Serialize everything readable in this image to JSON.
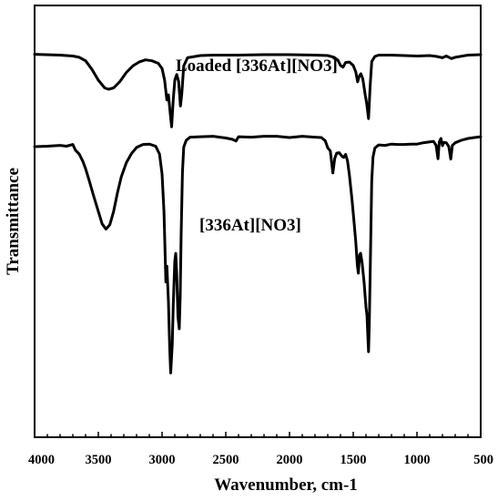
{
  "chart_data": {
    "type": "line",
    "title": "",
    "xlabel": "Wavenumber, cm-1",
    "ylabel": "Transmittance",
    "xlim": [
      4000,
      500
    ],
    "x_reversed": true,
    "x_ticks": [
      4000,
      3500,
      3000,
      2500,
      2000,
      1500,
      1000,
      500
    ],
    "y_tick_labels": false,
    "grid": false,
    "legend": "none",
    "colors": {
      "line": "#000000",
      "frame": "#000000"
    },
    "annotations": [
      {
        "id": "loaded",
        "text": "Loaded [336At][NO3]"
      },
      {
        "id": "neat",
        "text": "[336At][NO3]"
      }
    ],
    "series": [
      {
        "annotation": "Loaded [336At][NO3]",
        "points": [
          [
            4000,
            88.7
          ],
          [
            3800,
            88.5
          ],
          [
            3700,
            88.3
          ],
          [
            3650,
            88.0
          ],
          [
            3600,
            87.2
          ],
          [
            3550,
            85.2
          ],
          [
            3500,
            82.7
          ],
          [
            3450,
            80.9
          ],
          [
            3420,
            80.6
          ],
          [
            3380,
            80.9
          ],
          [
            3330,
            82.4
          ],
          [
            3280,
            84.5
          ],
          [
            3230,
            86.0
          ],
          [
            3180,
            86.9
          ],
          [
            3130,
            87.4
          ],
          [
            3080,
            87.2
          ],
          [
            3030,
            86.6
          ],
          [
            3000,
            85.4
          ],
          [
            2980,
            82.7
          ],
          [
            2962,
            78.1
          ],
          [
            2950,
            79.3
          ],
          [
            2935,
            74.8
          ],
          [
            2925,
            71.9
          ],
          [
            2912,
            78.2
          ],
          [
            2900,
            82.7
          ],
          [
            2885,
            84.0
          ],
          [
            2870,
            82.4
          ],
          [
            2856,
            76.7
          ],
          [
            2845,
            79.6
          ],
          [
            2830,
            86.0
          ],
          [
            2800,
            87.9
          ],
          [
            2700,
            88.4
          ],
          [
            2600,
            88.5
          ],
          [
            2400,
            88.5
          ],
          [
            2200,
            88.6
          ],
          [
            2000,
            88.6
          ],
          [
            1800,
            88.5
          ],
          [
            1700,
            88.4
          ],
          [
            1650,
            88.0
          ],
          [
            1620,
            87.3
          ],
          [
            1600,
            86.1
          ],
          [
            1580,
            85.7
          ],
          [
            1560,
            86.8
          ],
          [
            1530,
            86.9
          ],
          [
            1500,
            86.1
          ],
          [
            1480,
            84.6
          ],
          [
            1466,
            82.3
          ],
          [
            1455,
            83.5
          ],
          [
            1440,
            84.2
          ],
          [
            1425,
            83.0
          ],
          [
            1405,
            79.1
          ],
          [
            1395,
            77.4
          ],
          [
            1380,
            73.8
          ],
          [
            1368,
            81.1
          ],
          [
            1355,
            87.0
          ],
          [
            1330,
            88.2
          ],
          [
            1300,
            88.5
          ],
          [
            1200,
            88.5
          ],
          [
            1100,
            88.4
          ],
          [
            1000,
            88.3
          ],
          [
            900,
            88.4
          ],
          [
            850,
            88.2
          ],
          [
            800,
            87.9
          ],
          [
            770,
            88.3
          ],
          [
            730,
            87.7
          ],
          [
            700,
            88.0
          ],
          [
            600,
            88.5
          ],
          [
            500,
            88.6
          ]
        ]
      },
      {
        "annotation": "[336At][NO3]",
        "points": [
          [
            4000,
            67.3
          ],
          [
            3900,
            67.4
          ],
          [
            3800,
            67.6
          ],
          [
            3750,
            67.4
          ],
          [
            3700,
            67.8
          ],
          [
            3680,
            66.5
          ],
          [
            3650,
            65.6
          ],
          [
            3620,
            63.8
          ],
          [
            3600,
            62.2
          ],
          [
            3570,
            59.3
          ],
          [
            3540,
            56.2
          ],
          [
            3500,
            52.3
          ],
          [
            3470,
            49.4
          ],
          [
            3440,
            48.2
          ],
          [
            3410,
            49.2
          ],
          [
            3380,
            52.3
          ],
          [
            3350,
            56.6
          ],
          [
            3320,
            60.3
          ],
          [
            3280,
            63.6
          ],
          [
            3240,
            65.7
          ],
          [
            3200,
            67.1
          ],
          [
            3150,
            67.8
          ],
          [
            3100,
            67.9
          ],
          [
            3050,
            67.4
          ],
          [
            3020,
            65.6
          ],
          [
            3000,
            61.0
          ],
          [
            2985,
            52.3
          ],
          [
            2970,
            36.0
          ],
          [
            2962,
            39.6
          ],
          [
            2950,
            31.5
          ],
          [
            2940,
            20.7
          ],
          [
            2932,
            14.9
          ],
          [
            2920,
            21.5
          ],
          [
            2912,
            30.6
          ],
          [
            2900,
            40.8
          ],
          [
            2893,
            42.6
          ],
          [
            2885,
            37.8
          ],
          [
            2875,
            27.9
          ],
          [
            2865,
            25.1
          ],
          [
            2858,
            32.4
          ],
          [
            2850,
            47.3
          ],
          [
            2840,
            61.3
          ],
          [
            2830,
            67.2
          ],
          [
            2810,
            68.8
          ],
          [
            2780,
            69.5
          ],
          [
            2700,
            69.6
          ],
          [
            2600,
            69.7
          ],
          [
            2500,
            69.3
          ],
          [
            2450,
            69.0
          ],
          [
            2420,
            68.6
          ],
          [
            2400,
            69.6
          ],
          [
            2300,
            69.5
          ],
          [
            2200,
            69.7
          ],
          [
            2100,
            69.7
          ],
          [
            2000,
            69.4
          ],
          [
            1900,
            69.7
          ],
          [
            1800,
            69.5
          ],
          [
            1750,
            69.4
          ],
          [
            1720,
            68.7
          ],
          [
            1700,
            67.0
          ],
          [
            1680,
            66.3
          ],
          [
            1660,
            61.2
          ],
          [
            1645,
            64.6
          ],
          [
            1630,
            65.8
          ],
          [
            1610,
            65.9
          ],
          [
            1590,
            65.1
          ],
          [
            1575,
            64.8
          ],
          [
            1560,
            65.5
          ],
          [
            1545,
            64.0
          ],
          [
            1530,
            60.7
          ],
          [
            1510,
            55.1
          ],
          [
            1495,
            50.3
          ],
          [
            1480,
            45.2
          ],
          [
            1468,
            39.8
          ],
          [
            1460,
            38.0
          ],
          [
            1450,
            42.3
          ],
          [
            1442,
            42.6
          ],
          [
            1430,
            40.3
          ],
          [
            1415,
            35.9
          ],
          [
            1400,
            30.1
          ],
          [
            1392,
            28.2
          ],
          [
            1385,
            23.1
          ],
          [
            1380,
            19.8
          ],
          [
            1374,
            25.9
          ],
          [
            1365,
            41.7
          ],
          [
            1355,
            59.3
          ],
          [
            1345,
            64.9
          ],
          [
            1330,
            67.0
          ],
          [
            1300,
            67.7
          ],
          [
            1250,
            67.6
          ],
          [
            1200,
            67.9
          ],
          [
            1150,
            67.8
          ],
          [
            1100,
            67.8
          ],
          [
            1050,
            67.9
          ],
          [
            1000,
            67.9
          ],
          [
            950,
            68.2
          ],
          [
            900,
            68.4
          ],
          [
            870,
            68.5
          ],
          [
            850,
            67.6
          ],
          [
            835,
            64.5
          ],
          [
            825,
            68.4
          ],
          [
            812,
            69.2
          ],
          [
            800,
            67.5
          ],
          [
            788,
            68.3
          ],
          [
            770,
            68.2
          ],
          [
            750,
            67.3
          ],
          [
            735,
            64.4
          ],
          [
            722,
            67.6
          ],
          [
            700,
            68.2
          ],
          [
            650,
            68.8
          ],
          [
            600,
            69.2
          ],
          [
            550,
            69.4
          ],
          [
            500,
            69.6
          ]
        ]
      }
    ]
  }
}
